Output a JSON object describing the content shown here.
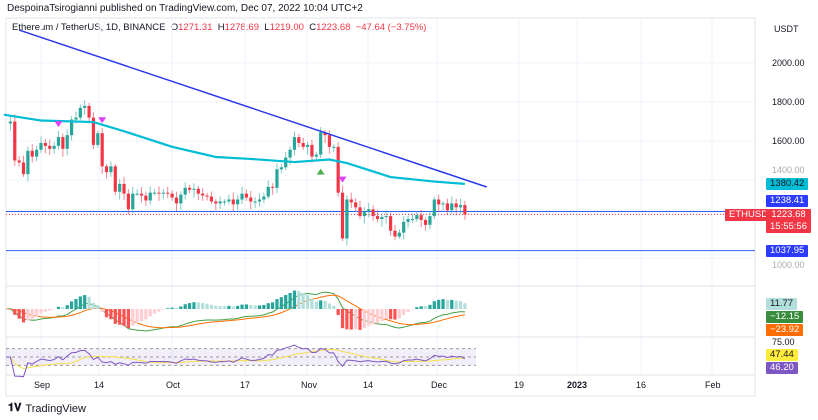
{
  "header": {
    "published": "DespoinaTsirogianni published on TradingView.com, Dec 07, 2022 10:04 UTC+2"
  },
  "legend": {
    "symbol": "Ethereum / TetherUS, 1D, BINANCE",
    "o_label": "O",
    "open": "1271.31",
    "h_label": "H",
    "high": "1278.69",
    "l_label": "L",
    "low": "1219.00",
    "c_label": "C",
    "close": "1223.68",
    "change": "−47.64 (−3.75%)"
  },
  "price_axis": {
    "currency": "USDT",
    "ticks": [
      "2000.00",
      "1800.00",
      "1600.00",
      "1400.00",
      "1000.00"
    ]
  },
  "tags": {
    "ma": "1380.42",
    "level_high": "1238.41",
    "symbol": "ETHUSDT",
    "last": "1223.68",
    "countdown": "15:55:56",
    "level_low": "1037.95",
    "macd_hist": "11.77",
    "macd": "−12.15",
    "macd_signal": "−23.92",
    "rsi_top": "75.00",
    "rsi_ma": "47.44",
    "rsi": "46.20"
  },
  "time_axis": [
    "Sep",
    "14",
    "Oct",
    "17",
    "Nov",
    "14",
    "Dec",
    "19",
    "2023",
    "16",
    "Feb"
  ],
  "footer": {
    "brand": "TradingView"
  },
  "colors": {
    "up": "#26a69a",
    "down": "#f23645",
    "ma": "#00bcd4",
    "trend": "#2b3be8",
    "level": "#2962ff",
    "macd": "#43a047",
    "signal": "#ff6d00",
    "rsi": "#7e57c2",
    "rsi_ma": "#ffeb3b"
  },
  "chart_data": {
    "type": "candlestick",
    "start_day_offset": -8,
    "note_days": "day 0 = Sep 1 2022",
    "closes": [
      1690,
      1700,
      1500,
      1490,
      1430,
      1550,
      1520,
      1555,
      1590,
      1575,
      1560,
      1575,
      1620,
      1560,
      1630,
      1710,
      1720,
      1770,
      1780,
      1720,
      1580,
      1640,
      1470,
      1440,
      1470,
      1340,
      1380,
      1330,
      1250,
      1330,
      1330,
      1320,
      1295,
      1335,
      1335,
      1330,
      1335,
      1330,
      1310,
      1280,
      1325,
      1360,
      1350,
      1355,
      1330,
      1320,
      1315,
      1290,
      1280,
      1290,
      1290,
      1300,
      1275,
      1300,
      1330,
      1310,
      1290,
      1290,
      1300,
      1315,
      1365,
      1360,
      1455,
      1465,
      1515,
      1555,
      1620,
      1590,
      1570,
      1580,
      1520,
      1530,
      1645,
      1630,
      1570,
      1570,
      1335,
      1100,
      1300,
      1285,
      1260,
      1215,
      1240,
      1250,
      1215,
      1200,
      1210,
      1215,
      1140,
      1110,
      1130,
      1185,
      1200,
      1200,
      1220,
      1195,
      1170,
      1215,
      1300,
      1275,
      1280,
      1245,
      1280,
      1260,
      1271.31,
      1223.68
    ],
    "ma_points": [
      [
        -8.5,
        1735
      ],
      [
        0,
        1705
      ],
      [
        12,
        1697
      ],
      [
        19,
        1650
      ],
      [
        30,
        1570
      ],
      [
        40,
        1518
      ],
      [
        48,
        1508
      ],
      [
        58,
        1492
      ],
      [
        66,
        1505
      ],
      [
        70,
        1487
      ],
      [
        80,
        1415
      ],
      [
        90,
        1392
      ],
      [
        97,
        1380
      ]
    ],
    "trendline": [
      [
        -5,
        2169
      ],
      [
        102,
        1364
      ]
    ],
    "levels": [
      1238.41,
      1037.95
    ],
    "last_price": 1223.68,
    "signals": [
      {
        "day": 4,
        "type": "sell"
      },
      {
        "day": 14,
        "type": "sell"
      },
      {
        "day": 64,
        "type": "buy"
      },
      {
        "day": 69,
        "type": "sell"
      }
    ]
  }
}
